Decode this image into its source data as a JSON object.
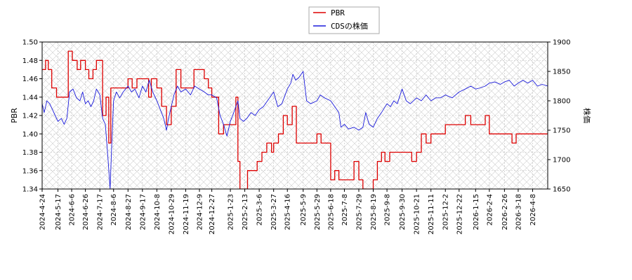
{
  "chart_data": {
    "type": "line",
    "legend": {
      "placement": "top-center",
      "entries": [
        {
          "name": "PBR",
          "color": "#dd0000"
        },
        {
          "name": "CDSの株価",
          "color": "#1a1adb"
        }
      ]
    },
    "left_axis": {
      "label": "PBR",
      "range": [
        1.34,
        1.5
      ],
      "ticks": [
        "1.34",
        "1.36",
        "1.38",
        "1.40",
        "1.42",
        "1.44",
        "1.46",
        "1.48",
        "1.50"
      ]
    },
    "right_axis": {
      "label": "株価",
      "range": [
        1650,
        1900
      ],
      "ticks": [
        "1650",
        "1700",
        "1750",
        "1800",
        "1850",
        "1900"
      ]
    },
    "x_axis": {
      "range": [
        "2024-04-24",
        "2026-04-30"
      ],
      "ticks": [
        "2024-4-24",
        "2024-5-17",
        "2024-6-6",
        "2024-6-26",
        "2024-7-17",
        "2024-8-6",
        "2024-8-27",
        "2024-9-17",
        "2024-10-8",
        "2024-10-29",
        "2024-11-19",
        "2024-12-9",
        "2024-12-27",
        "2025-1-23",
        "2025-2-13",
        "2025-3-6",
        "2025-3-27",
        "2025-4-16",
        "2025-5-9",
        "2025-5-29",
        "2025-6-18",
        "2025-7-8",
        "2025-7-29",
        "2025-8-19",
        "2025-9-8",
        "2025-9-30",
        "2025-10-21",
        "2025-11-11",
        "2025-12-2",
        "2025-12-22",
        "2026-1-15",
        "2026-2-4",
        "2026-2-26",
        "2026-3-18",
        "2026-4-8"
      ]
    },
    "grid": true,
    "series": [
      {
        "name": "PBR",
        "axis": "left",
        "color": "#dd0000",
        "points": [
          [
            "2024-04-24",
            1.47
          ],
          [
            "2024-04-29",
            1.48
          ],
          [
            "2024-05-03",
            1.47
          ],
          [
            "2024-05-08",
            1.45
          ],
          [
            "2024-05-15",
            1.44
          ],
          [
            "2024-05-30",
            1.44
          ],
          [
            "2024-06-01",
            1.49
          ],
          [
            "2024-06-07",
            1.48
          ],
          [
            "2024-06-14",
            1.47
          ],
          [
            "2024-06-19",
            1.48
          ],
          [
            "2024-06-26",
            1.47
          ],
          [
            "2024-07-01",
            1.46
          ],
          [
            "2024-07-07",
            1.47
          ],
          [
            "2024-07-12",
            1.48
          ],
          [
            "2024-07-17",
            1.48
          ],
          [
            "2024-07-21",
            1.42
          ],
          [
            "2024-07-26",
            1.44
          ],
          [
            "2024-07-30",
            1.39
          ],
          [
            "2024-08-02",
            1.45
          ],
          [
            "2024-08-10",
            1.45
          ],
          [
            "2024-08-20",
            1.45
          ],
          [
            "2024-08-27",
            1.46
          ],
          [
            "2024-09-02",
            1.45
          ],
          [
            "2024-09-09",
            1.46
          ],
          [
            "2024-09-17",
            1.46
          ],
          [
            "2024-09-26",
            1.44
          ],
          [
            "2024-09-30",
            1.46
          ],
          [
            "2024-10-08",
            1.45
          ],
          [
            "2024-10-15",
            1.43
          ],
          [
            "2024-10-22",
            1.41
          ],
          [
            "2024-10-29",
            1.43
          ],
          [
            "2024-11-05",
            1.47
          ],
          [
            "2024-11-12",
            1.45
          ],
          [
            "2024-11-19",
            1.45
          ],
          [
            "2024-11-26",
            1.45
          ],
          [
            "2024-12-01",
            1.47
          ],
          [
            "2024-12-09",
            1.47
          ],
          [
            "2024-12-16",
            1.46
          ],
          [
            "2024-12-22",
            1.45
          ],
          [
            "2024-12-27",
            1.44
          ],
          [
            "2025-01-06",
            1.4
          ],
          [
            "2025-01-13",
            1.41
          ],
          [
            "2025-01-23",
            1.41
          ],
          [
            "2025-01-31",
            1.44
          ],
          [
            "2025-02-03",
            1.37
          ],
          [
            "2025-02-06",
            1.34
          ],
          [
            "2025-02-13",
            1.34
          ],
          [
            "2025-02-17",
            1.36
          ],
          [
            "2025-02-24",
            1.36
          ],
          [
            "2025-03-03",
            1.37
          ],
          [
            "2025-03-10",
            1.38
          ],
          [
            "2025-03-17",
            1.39
          ],
          [
            "2025-03-24",
            1.38
          ],
          [
            "2025-03-27",
            1.39
          ],
          [
            "2025-04-03",
            1.4
          ],
          [
            "2025-04-10",
            1.42
          ],
          [
            "2025-04-16",
            1.41
          ],
          [
            "2025-04-23",
            1.43
          ],
          [
            "2025-04-29",
            1.39
          ],
          [
            "2025-05-09",
            1.39
          ],
          [
            "2025-05-19",
            1.39
          ],
          [
            "2025-05-29",
            1.4
          ],
          [
            "2025-06-04",
            1.39
          ],
          [
            "2025-06-11",
            1.39
          ],
          [
            "2025-06-18",
            1.35
          ],
          [
            "2025-06-24",
            1.36
          ],
          [
            "2025-06-30",
            1.35
          ],
          [
            "2025-07-08",
            1.35
          ],
          [
            "2025-07-14",
            1.35
          ],
          [
            "2025-07-22",
            1.37
          ],
          [
            "2025-07-29",
            1.35
          ],
          [
            "2025-08-04",
            1.34
          ],
          [
            "2025-08-10",
            1.34
          ],
          [
            "2025-08-19",
            1.35
          ],
          [
            "2025-08-25",
            1.37
          ],
          [
            "2025-08-31",
            1.38
          ],
          [
            "2025-09-05",
            1.37
          ],
          [
            "2025-09-12",
            1.38
          ],
          [
            "2025-09-20",
            1.38
          ],
          [
            "2025-09-30",
            1.38
          ],
          [
            "2025-10-07",
            1.38
          ],
          [
            "2025-10-14",
            1.37
          ],
          [
            "2025-10-21",
            1.38
          ],
          [
            "2025-10-28",
            1.4
          ],
          [
            "2025-11-04",
            1.39
          ],
          [
            "2025-11-11",
            1.4
          ],
          [
            "2025-11-20",
            1.4
          ],
          [
            "2025-12-02",
            1.41
          ],
          [
            "2025-12-12",
            1.41
          ],
          [
            "2025-12-22",
            1.41
          ],
          [
            "2025-12-31",
            1.42
          ],
          [
            "2026-01-08",
            1.41
          ],
          [
            "2026-01-15",
            1.41
          ],
          [
            "2026-01-22",
            1.41
          ],
          [
            "2026-01-29",
            1.42
          ],
          [
            "2026-02-04",
            1.4
          ],
          [
            "2026-02-12",
            1.4
          ],
          [
            "2026-02-26",
            1.4
          ],
          [
            "2026-03-09",
            1.39
          ],
          [
            "2026-03-15",
            1.4
          ],
          [
            "2026-03-24",
            1.4
          ],
          [
            "2026-04-02",
            1.4
          ],
          [
            "2026-04-30",
            1.4
          ]
        ]
      },
      {
        "name": "CDSの株価",
        "axis": "right",
        "color": "#1a1adb",
        "points": [
          [
            "2024-04-24",
            1795
          ],
          [
            "2024-04-27",
            1780
          ],
          [
            "2024-05-01",
            1800
          ],
          [
            "2024-05-05",
            1795
          ],
          [
            "2024-05-09",
            1785
          ],
          [
            "2024-05-13",
            1775
          ],
          [
            "2024-05-17",
            1765
          ],
          [
            "2024-05-22",
            1770
          ],
          [
            "2024-05-26",
            1760
          ],
          [
            "2024-05-30",
            1770
          ],
          [
            "2024-06-03",
            1815
          ],
          [
            "2024-06-08",
            1820
          ],
          [
            "2024-06-13",
            1805
          ],
          [
            "2024-06-18",
            1800
          ],
          [
            "2024-06-22",
            1815
          ],
          [
            "2024-06-26",
            1795
          ],
          [
            "2024-06-30",
            1800
          ],
          [
            "2024-07-04",
            1790
          ],
          [
            "2024-07-08",
            1800
          ],
          [
            "2024-07-12",
            1820
          ],
          [
            "2024-07-17",
            1810
          ],
          [
            "2024-07-21",
            1770
          ],
          [
            "2024-07-25",
            1760
          ],
          [
            "2024-07-29",
            1700
          ],
          [
            "2024-08-01",
            1650
          ],
          [
            "2024-08-03",
            1715
          ],
          [
            "2024-08-06",
            1800
          ],
          [
            "2024-08-10",
            1815
          ],
          [
            "2024-08-15",
            1805
          ],
          [
            "2024-08-20",
            1815
          ],
          [
            "2024-08-27",
            1825
          ],
          [
            "2024-09-01",
            1815
          ],
          [
            "2024-09-06",
            1820
          ],
          [
            "2024-09-12",
            1805
          ],
          [
            "2024-09-17",
            1825
          ],
          [
            "2024-09-22",
            1815
          ],
          [
            "2024-09-27",
            1835
          ],
          [
            "2024-10-02",
            1815
          ],
          [
            "2024-10-08",
            1800
          ],
          [
            "2024-10-13",
            1785
          ],
          [
            "2024-10-18",
            1770
          ],
          [
            "2024-10-22",
            1750
          ],
          [
            "2024-10-25",
            1770
          ],
          [
            "2024-10-29",
            1790
          ],
          [
            "2024-11-02",
            1810
          ],
          [
            "2024-11-07",
            1825
          ],
          [
            "2024-11-12",
            1815
          ],
          [
            "2024-11-19",
            1820
          ],
          [
            "2024-11-26",
            1810
          ],
          [
            "2024-12-02",
            1825
          ],
          [
            "2024-12-09",
            1820
          ],
          [
            "2024-12-16",
            1815
          ],
          [
            "2024-12-22",
            1810
          ],
          [
            "2024-12-27",
            1810
          ],
          [
            "2025-01-03",
            1805
          ],
          [
            "2025-01-08",
            1775
          ],
          [
            "2025-01-13",
            1760
          ],
          [
            "2025-01-18",
            1740
          ],
          [
            "2025-01-23",
            1765
          ],
          [
            "2025-01-28",
            1780
          ],
          [
            "2025-02-03",
            1800
          ],
          [
            "2025-02-06",
            1770
          ],
          [
            "2025-02-11",
            1765
          ],
          [
            "2025-02-16",
            1770
          ],
          [
            "2025-02-22",
            1780
          ],
          [
            "2025-02-28",
            1775
          ],
          [
            "2025-03-06",
            1785
          ],
          [
            "2025-03-12",
            1790
          ],
          [
            "2025-03-18",
            1800
          ],
          [
            "2025-03-24",
            1810
          ],
          [
            "2025-03-27",
            1815
          ],
          [
            "2025-04-02",
            1790
          ],
          [
            "2025-04-08",
            1795
          ],
          [
            "2025-04-16",
            1820
          ],
          [
            "2025-04-21",
            1830
          ],
          [
            "2025-04-24",
            1845
          ],
          [
            "2025-04-28",
            1835
          ],
          [
            "2025-05-03",
            1840
          ],
          [
            "2025-05-09",
            1850
          ],
          [
            "2025-05-14",
            1800
          ],
          [
            "2025-05-20",
            1795
          ],
          [
            "2025-05-29",
            1800
          ],
          [
            "2025-06-03",
            1810
          ],
          [
            "2025-06-09",
            1805
          ],
          [
            "2025-06-18",
            1800
          ],
          [
            "2025-06-24",
            1790
          ],
          [
            "2025-06-30",
            1780
          ],
          [
            "2025-07-03",
            1755
          ],
          [
            "2025-07-08",
            1760
          ],
          [
            "2025-07-14",
            1752
          ],
          [
            "2025-07-22",
            1755
          ],
          [
            "2025-07-29",
            1750
          ],
          [
            "2025-08-04",
            1755
          ],
          [
            "2025-08-08",
            1780
          ],
          [
            "2025-08-13",
            1760
          ],
          [
            "2025-08-19",
            1755
          ],
          [
            "2025-08-25",
            1770
          ],
          [
            "2025-08-31",
            1780
          ],
          [
            "2025-09-08",
            1795
          ],
          [
            "2025-09-13",
            1790
          ],
          [
            "2025-09-18",
            1800
          ],
          [
            "2025-09-23",
            1795
          ],
          [
            "2025-09-30",
            1820
          ],
          [
            "2025-10-06",
            1800
          ],
          [
            "2025-10-12",
            1795
          ],
          [
            "2025-10-21",
            1805
          ],
          [
            "2025-10-28",
            1800
          ],
          [
            "2025-11-04",
            1810
          ],
          [
            "2025-11-11",
            1800
          ],
          [
            "2025-11-18",
            1805
          ],
          [
            "2025-11-25",
            1805
          ],
          [
            "2025-12-02",
            1810
          ],
          [
            "2025-12-12",
            1805
          ],
          [
            "2025-12-22",
            1815
          ],
          [
            "2025-12-31",
            1820
          ],
          [
            "2026-01-08",
            1825
          ],
          [
            "2026-01-15",
            1820
          ],
          [
            "2026-01-22",
            1822
          ],
          [
            "2026-01-29",
            1825
          ],
          [
            "2026-02-04",
            1830
          ],
          [
            "2026-02-12",
            1832
          ],
          [
            "2026-02-20",
            1828
          ],
          [
            "2026-02-26",
            1832
          ],
          [
            "2026-03-05",
            1835
          ],
          [
            "2026-03-12",
            1825
          ],
          [
            "2026-03-18",
            1830
          ],
          [
            "2026-03-25",
            1835
          ],
          [
            "2026-04-01",
            1830
          ],
          [
            "2026-04-08",
            1835
          ],
          [
            "2026-04-15",
            1825
          ],
          [
            "2026-04-22",
            1828
          ],
          [
            "2026-04-30",
            1825
          ]
        ]
      }
    ]
  }
}
